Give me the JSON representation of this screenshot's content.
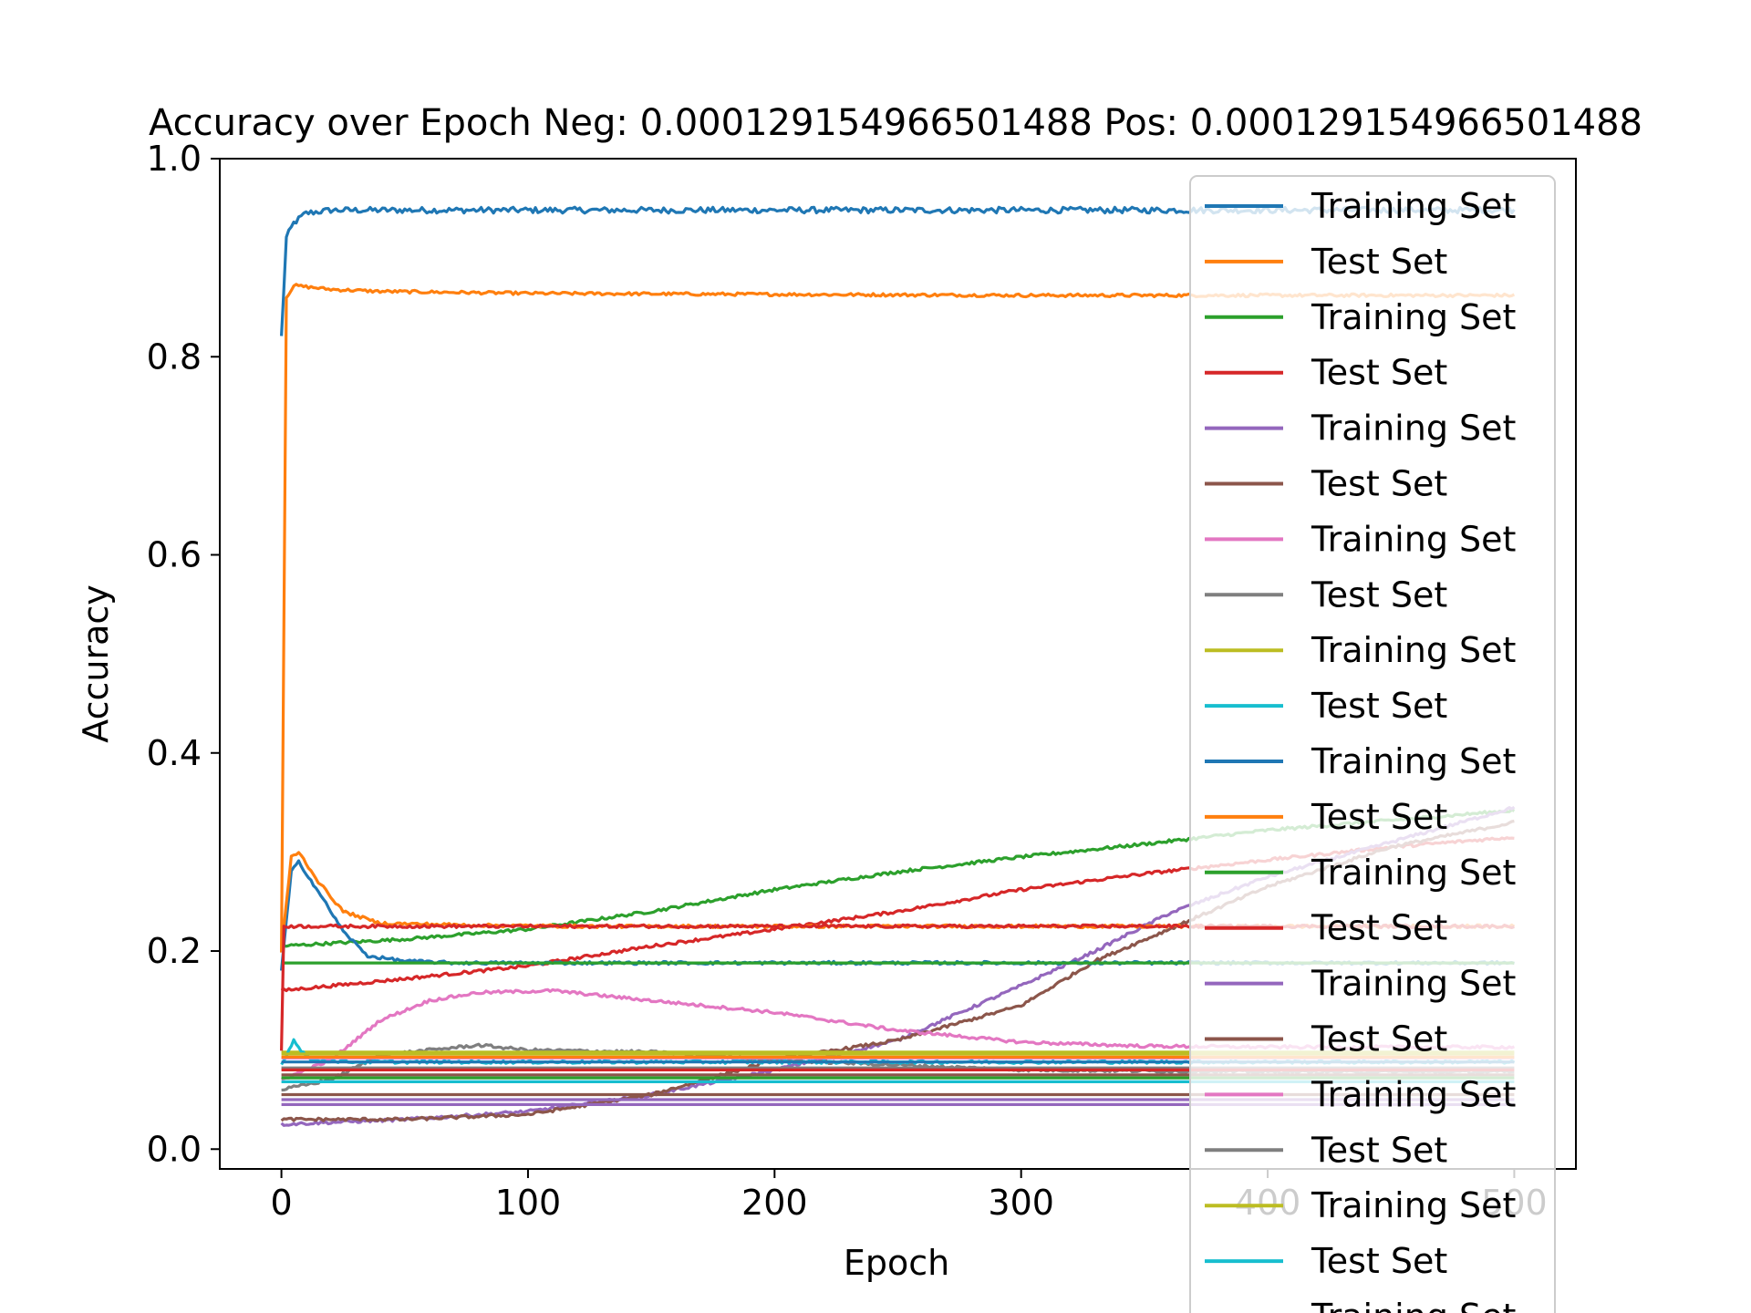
{
  "chart_data": {
    "type": "line",
    "title": "Accuracy over Epoch Neg: 0.000129154966501488 Pos: 0.000129154966501488",
    "xlabel": "Epoch",
    "ylabel": "Accuracy",
    "xlim": [
      -25,
      525
    ],
    "ylim": [
      -0.02,
      1.0
    ],
    "x_ticks": [
      "0",
      "100",
      "200",
      "300",
      "400",
      "500"
    ],
    "x_tick_values": [
      0,
      100,
      200,
      300,
      400,
      500
    ],
    "y_ticks": [
      "0.0",
      "0.2",
      "0.4",
      "0.6",
      "0.8",
      "1.0"
    ],
    "y_tick_values": [
      0.0,
      0.2,
      0.4,
      0.6,
      0.8,
      1.0
    ],
    "grid": false,
    "legend_position": "upper right",
    "epochs": 500,
    "series": [
      {
        "name": "Training Set",
        "color": "#1f77b4",
        "points": [
          [
            0,
            0.82
          ],
          [
            2,
            0.92
          ],
          [
            5,
            0.935
          ],
          [
            10,
            0.945
          ],
          [
            20,
            0.948
          ],
          [
            100,
            0.948
          ],
          [
            200,
            0.948
          ],
          [
            300,
            0.948
          ],
          [
            400,
            0.948
          ],
          [
            500,
            0.948
          ]
        ]
      },
      {
        "name": "Test Set",
        "color": "#ff7f0e",
        "points": [
          [
            0,
            0.2
          ],
          [
            2,
            0.86
          ],
          [
            5,
            0.872
          ],
          [
            20,
            0.868
          ],
          [
            40,
            0.866
          ],
          [
            100,
            0.864
          ],
          [
            200,
            0.863
          ],
          [
            300,
            0.862
          ],
          [
            400,
            0.862
          ],
          [
            500,
            0.862
          ]
        ]
      },
      {
        "name": "Training Set",
        "color": "#2ca02c",
        "points": [
          [
            0,
            0.205
          ],
          [
            50,
            0.212
          ],
          [
            100,
            0.222
          ],
          [
            150,
            0.24
          ],
          [
            200,
            0.262
          ],
          [
            250,
            0.28
          ],
          [
            300,
            0.295
          ],
          [
            350,
            0.308
          ],
          [
            400,
            0.322
          ],
          [
            450,
            0.332
          ],
          [
            500,
            0.342
          ]
        ]
      },
      {
        "name": "Test Set",
        "color": "#d62728",
        "points": [
          [
            0,
            0.16
          ],
          [
            50,
            0.172
          ],
          [
            100,
            0.185
          ],
          [
            150,
            0.205
          ],
          [
            200,
            0.222
          ],
          [
            250,
            0.24
          ],
          [
            300,
            0.262
          ],
          [
            350,
            0.278
          ],
          [
            400,
            0.292
          ],
          [
            450,
            0.305
          ],
          [
            500,
            0.315
          ]
        ]
      },
      {
        "name": "Training Set",
        "color": "#9467bd",
        "points": [
          [
            0,
            0.025
          ],
          [
            50,
            0.03
          ],
          [
            100,
            0.038
          ],
          [
            150,
            0.055
          ],
          [
            200,
            0.08
          ],
          [
            250,
            0.11
          ],
          [
            300,
            0.165
          ],
          [
            330,
            0.2
          ],
          [
            360,
            0.238
          ],
          [
            400,
            0.275
          ],
          [
            450,
            0.31
          ],
          [
            500,
            0.345
          ]
        ]
      },
      {
        "name": "Test Set",
        "color": "#8c564b",
        "points": [
          [
            0,
            0.03
          ],
          [
            50,
            0.03
          ],
          [
            100,
            0.035
          ],
          [
            150,
            0.055
          ],
          [
            200,
            0.09
          ],
          [
            250,
            0.11
          ],
          [
            300,
            0.145
          ],
          [
            330,
            0.19
          ],
          [
            360,
            0.222
          ],
          [
            400,
            0.265
          ],
          [
            450,
            0.305
          ],
          [
            500,
            0.33
          ]
        ]
      },
      {
        "name": "Training Set",
        "color": "#e377c2",
        "points": [
          [
            0,
            0.07
          ],
          [
            20,
            0.09
          ],
          [
            40,
            0.13
          ],
          [
            60,
            0.15
          ],
          [
            80,
            0.158
          ],
          [
            110,
            0.16
          ],
          [
            150,
            0.15
          ],
          [
            200,
            0.138
          ],
          [
            250,
            0.12
          ],
          [
            300,
            0.108
          ],
          [
            350,
            0.104
          ],
          [
            400,
            0.103
          ],
          [
            500,
            0.103
          ]
        ]
      },
      {
        "name": "Test Set",
        "color": "#7f7f7f",
        "points": [
          [
            0,
            0.06
          ],
          [
            20,
            0.07
          ],
          [
            40,
            0.095
          ],
          [
            60,
            0.1
          ],
          [
            80,
            0.105
          ],
          [
            100,
            0.1
          ],
          [
            150,
            0.098
          ],
          [
            200,
            0.09
          ],
          [
            250,
            0.085
          ],
          [
            300,
            0.08
          ],
          [
            400,
            0.078
          ],
          [
            500,
            0.078
          ]
        ]
      },
      {
        "name": "Training Set",
        "color": "#bcbd22",
        "points": [
          [
            0,
            0.098
          ],
          [
            500,
            0.098
          ]
        ]
      },
      {
        "name": "Test Set",
        "color": "#17becf",
        "points": [
          [
            0,
            0.085
          ],
          [
            5,
            0.11
          ],
          [
            8,
            0.1
          ],
          [
            12,
            0.09
          ],
          [
            30,
            0.088
          ],
          [
            500,
            0.088
          ]
        ]
      },
      {
        "name": "Training Set",
        "color": "#1f77b4",
        "points": [
          [
            0,
            0.18
          ],
          [
            4,
            0.28
          ],
          [
            7,
            0.29
          ],
          [
            15,
            0.26
          ],
          [
            25,
            0.22
          ],
          [
            35,
            0.195
          ],
          [
            50,
            0.19
          ],
          [
            70,
            0.188
          ],
          [
            500,
            0.188
          ]
        ]
      },
      {
        "name": "Test Set",
        "color": "#ff7f0e",
        "points": [
          [
            0,
            0.2
          ],
          [
            4,
            0.295
          ],
          [
            7,
            0.3
          ],
          [
            15,
            0.27
          ],
          [
            25,
            0.24
          ],
          [
            40,
            0.228
          ],
          [
            80,
            0.226
          ],
          [
            120,
            0.225
          ],
          [
            500,
            0.225
          ]
        ]
      },
      {
        "name": "Training Set",
        "color": "#2ca02c",
        "points": [
          [
            0,
            0.188
          ],
          [
            500,
            0.188
          ]
        ]
      },
      {
        "name": "Test Set",
        "color": "#d62728",
        "points": [
          [
            0,
            0.1
          ],
          [
            1,
            0.225
          ],
          [
            500,
            0.225
          ]
        ]
      },
      {
        "name": "Training Set",
        "color": "#9467bd",
        "points": [
          [
            0,
            0.045
          ],
          [
            500,
            0.045
          ]
        ]
      },
      {
        "name": "Test Set",
        "color": "#8c564b",
        "points": [
          [
            0,
            0.055
          ],
          [
            500,
            0.055
          ]
        ]
      },
      {
        "name": "Training Set",
        "color": "#e377c2",
        "points": [
          [
            0,
            0.092
          ],
          [
            500,
            0.092
          ]
        ]
      },
      {
        "name": "Test Set",
        "color": "#7f7f7f",
        "points": [
          [
            0,
            0.082
          ],
          [
            500,
            0.082
          ]
        ]
      },
      {
        "name": "Training Set",
        "color": "#bcbd22",
        "points": [
          [
            0,
            0.096
          ],
          [
            500,
            0.096
          ]
        ]
      },
      {
        "name": "Test Set",
        "color": "#17becf",
        "points": [
          [
            0,
            0.068
          ],
          [
            500,
            0.068
          ]
        ]
      },
      {
        "name": "Training Set",
        "color": "#1f77b4",
        "points": [
          [
            0,
            0.088
          ],
          [
            500,
            0.088
          ]
        ]
      },
      {
        "name": "Test Set",
        "color": "#ff7f0e",
        "points": [
          [
            0,
            0.093
          ],
          [
            500,
            0.093
          ]
        ]
      },
      {
        "name": "Training Set",
        "color": "#2ca02c",
        "points": [
          [
            0,
            0.072
          ],
          [
            500,
            0.072
          ]
        ]
      },
      {
        "name": "Test Set",
        "color": "#d62728",
        "points": [
          [
            0,
            0.08
          ],
          [
            500,
            0.08
          ]
        ]
      },
      {
        "name": "Training Set",
        "color": "#9467bd",
        "points": [
          [
            0,
            0.05
          ],
          [
            500,
            0.05
          ]
        ]
      },
      {
        "name": "Test Set",
        "color": "#8c564b",
        "points": [
          [
            0,
            0.075
          ],
          [
            500,
            0.075
          ]
        ]
      }
    ]
  }
}
